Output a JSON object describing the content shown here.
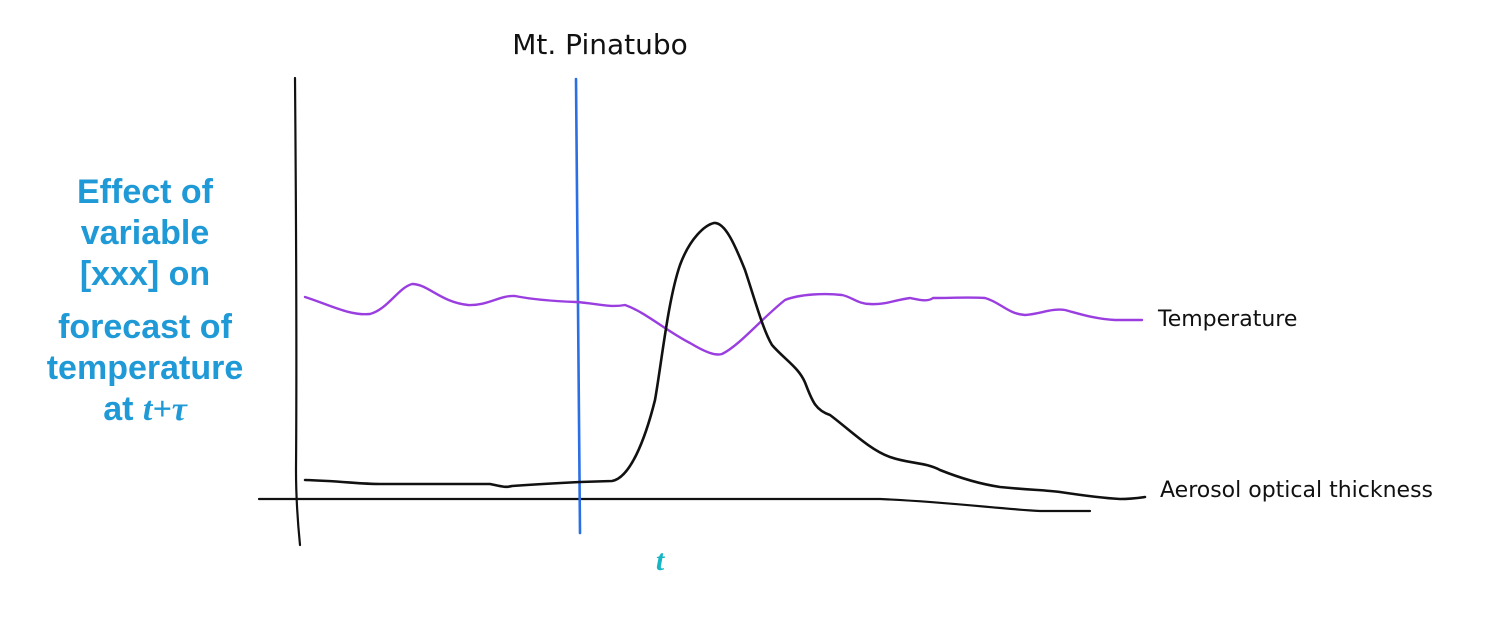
{
  "chart_data": {
    "type": "line",
    "title": "",
    "ylabel": {
      "line1": "Effect of",
      "line2": "variable",
      "line3": "[xxx] on",
      "line4": "forecast of",
      "line5": "temperature",
      "line6_prefix": "at ",
      "line6_math": "t+τ"
    },
    "xtick": "t",
    "event_marker": {
      "label": "Mt. Pinatubo",
      "color": "#2b6fe6"
    },
    "series": [
      {
        "name": "Temperature",
        "color": "#9a3ee0",
        "description_shape": "roughly flat with small wiggles, dips after the event then recovers"
      },
      {
        "name": "Aerosol optical thickness",
        "color": "#111111",
        "description_shape": "flat baseline, sharp peak after the event, slow decay"
      }
    ],
    "grid": false,
    "legend": "inline labels at right end of each series"
  }
}
